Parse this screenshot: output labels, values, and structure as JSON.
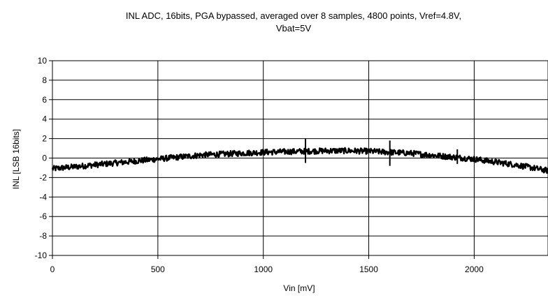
{
  "chart_data": {
    "type": "line",
    "title": "INL ADC, 16bits, PGA bypassed, averaged over 8 samples, 4800 points, Vref=4.8V,",
    "subtitle": "Vbat=5V",
    "xlabel": "Vin [mV]",
    "ylabel": "INL [LSB 16bits]",
    "xlim": [
      0,
      2350
    ],
    "ylim": [
      -10,
      10
    ],
    "x_ticks": [
      "0",
      "500",
      "1000",
      "1500",
      "2000"
    ],
    "y_ticks": [
      "10",
      "8",
      "6",
      "4",
      "2",
      "0",
      "-2",
      "-4",
      "-6",
      "-8",
      "-10"
    ],
    "grid": true,
    "line_color": "#000000",
    "series": [
      {
        "x": [
          0,
          100,
          200,
          300,
          400,
          500,
          600,
          700,
          800,
          900,
          1000,
          1100,
          1200,
          1300,
          1400,
          1500,
          1600,
          1700,
          1800,
          1900,
          2000,
          2100,
          2200,
          2300,
          2350
        ],
        "values": [
          -1.1,
          -0.9,
          -0.7,
          -0.5,
          -0.3,
          -0.1,
          0.1,
          0.3,
          0.4,
          0.5,
          0.6,
          0.65,
          0.7,
          0.75,
          0.75,
          0.7,
          0.6,
          0.5,
          0.3,
          0.1,
          -0.1,
          -0.4,
          -0.7,
          -1.1,
          -1.3
        ],
        "spikes": [
          {
            "x": 1200,
            "high": 2.0,
            "low": -0.5
          },
          {
            "x": 1600,
            "high": 1.8,
            "low": -0.8
          },
          {
            "x": 1920,
            "high": 0.9,
            "low": -0.6
          }
        ]
      }
    ]
  }
}
